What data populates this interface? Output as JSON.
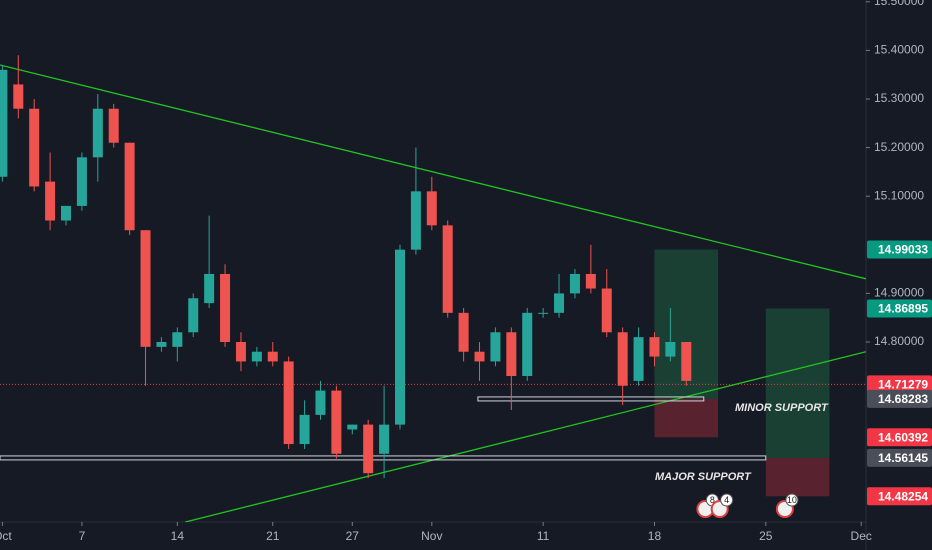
{
  "chart_data": {
    "type": "candlestick",
    "open": [
      15.14,
      15.33,
      15.28,
      15.13,
      15.05,
      15.08,
      15.18,
      15.28,
      15.21,
      15.03,
      14.79,
      14.79,
      14.82,
      14.88,
      14.94,
      14.8,
      14.76,
      14.78,
      14.76,
      14.59,
      14.65,
      14.7,
      14.62,
      14.63,
      14.57,
      14.63,
      14.99,
      15.11,
      15.04,
      14.86,
      14.78,
      14.76,
      14.82,
      14.73,
      14.86,
      14.86,
      14.9,
      14.94,
      14.91,
      14.82,
      14.72,
      14.81,
      14.77,
      14.8
    ],
    "high": [
      15.37,
      15.39,
      15.3,
      15.19,
      15.08,
      15.19,
      15.31,
      15.29,
      15.21,
      15.03,
      14.81,
      14.83,
      14.9,
      15.06,
      14.96,
      14.82,
      14.79,
      14.8,
      14.77,
      14.68,
      14.72,
      14.71,
      14.63,
      14.64,
      14.71,
      15.0,
      15.2,
      15.14,
      15.05,
      14.87,
      14.8,
      14.83,
      14.83,
      14.87,
      14.87,
      14.94,
      14.95,
      15.0,
      14.95,
      14.83,
      14.83,
      14.82,
      14.87,
      14.8
    ],
    "low": [
      15.13,
      15.26,
      15.11,
      15.03,
      15.04,
      15.07,
      15.13,
      15.2,
      15.02,
      14.71,
      14.78,
      14.76,
      14.81,
      14.87,
      14.79,
      14.74,
      14.75,
      14.75,
      14.58,
      14.58,
      14.64,
      14.56,
      14.61,
      14.52,
      14.52,
      14.62,
      14.98,
      15.03,
      14.85,
      14.76,
      14.72,
      14.75,
      14.66,
      14.72,
      14.85,
      14.85,
      14.89,
      14.9,
      14.81,
      14.67,
      14.71,
      14.75,
      14.76,
      14.71
    ],
    "close": [
      15.36,
      15.28,
      15.12,
      15.05,
      15.08,
      15.18,
      15.28,
      15.21,
      15.03,
      14.79,
      14.8,
      14.82,
      14.89,
      14.94,
      14.8,
      14.76,
      14.78,
      14.76,
      14.59,
      14.65,
      14.7,
      14.57,
      14.63,
      14.53,
      14.63,
      14.99,
      15.11,
      15.04,
      14.86,
      14.78,
      14.76,
      14.82,
      14.73,
      14.86,
      14.86,
      14.9,
      14.94,
      14.91,
      14.82,
      14.71,
      14.81,
      14.77,
      14.8,
      14.72
    ],
    "up_color": "#26a69a",
    "down_color": "#ef5350",
    "xlim": [
      -0.15,
      54.3
    ],
    "xticks": [
      {
        "value": 0,
        "label": "Oct"
      },
      {
        "value": 5,
        "label": "7"
      },
      {
        "value": 11,
        "label": "14"
      },
      {
        "value": 17,
        "label": "21"
      },
      {
        "value": 22,
        "label": "27"
      },
      {
        "value": 27,
        "label": "Nov"
      },
      {
        "value": 34,
        "label": "11"
      },
      {
        "value": 41,
        "label": "18"
      },
      {
        "value": 48,
        "label": "25"
      },
      {
        "value": 54,
        "label": "Dec"
      }
    ],
    "ylim": [
      14.4296,
      15.5037
    ],
    "yticks": [
      {
        "value": 15.5,
        "label": "15.50000"
      },
      {
        "value": 15.4,
        "label": "15.40000"
      },
      {
        "value": 15.3,
        "label": "15.30000"
      },
      {
        "value": 15.2,
        "label": "15.20000"
      },
      {
        "value": 15.1,
        "label": "15.10000"
      },
      {
        "value": 14.9,
        "label": "14.90000"
      },
      {
        "value": 14.8,
        "label": "14.80000"
      }
    ],
    "price_labels": [
      {
        "value": 14.99033,
        "color": "#089981"
      },
      {
        "value": 14.86895,
        "color": "#089981"
      },
      {
        "value": 14.71279,
        "color": "#f23645"
      },
      {
        "value": 14.68283,
        "color": "#4a4e59"
      },
      {
        "value": 14.60392,
        "color": "#f23645"
      },
      {
        "value": 14.56145,
        "color": "#4a4e59"
      },
      {
        "value": 14.48254,
        "color": "#f23645"
      }
    ],
    "trendlines": [
      {
        "x": [
          -0.15,
          54.3
        ],
        "y": [
          15.37,
          14.93
        ],
        "color": "#22c322"
      },
      {
        "x": [
          11.5,
          54.3
        ],
        "y": [
          14.4296,
          14.78
        ],
        "color": "#22c322"
      }
    ],
    "supports": [
      {
        "x": [
          29.9,
          44.1
        ],
        "value": 14.68283,
        "label": "MINOR SUPPORT"
      },
      {
        "x": [
          -0.15,
          48.0
        ],
        "value": 14.56145,
        "label": "MAJOR SUPPORT"
      }
    ],
    "positions": [
      {
        "x": [
          41.0,
          45.0
        ],
        "target": 14.99033,
        "entry": 14.68283,
        "stop": 14.60392
      },
      {
        "x": [
          48.0,
          52.0
        ],
        "target": 14.86895,
        "entry": 14.56145,
        "stop": 14.48254
      }
    ],
    "current_price": 14.71279,
    "events": [
      {
        "x": 44.2,
        "badge": "8"
      },
      {
        "x": 45.1,
        "badge": "4"
      },
      {
        "x": 49.2,
        "badge": "10"
      }
    ]
  }
}
